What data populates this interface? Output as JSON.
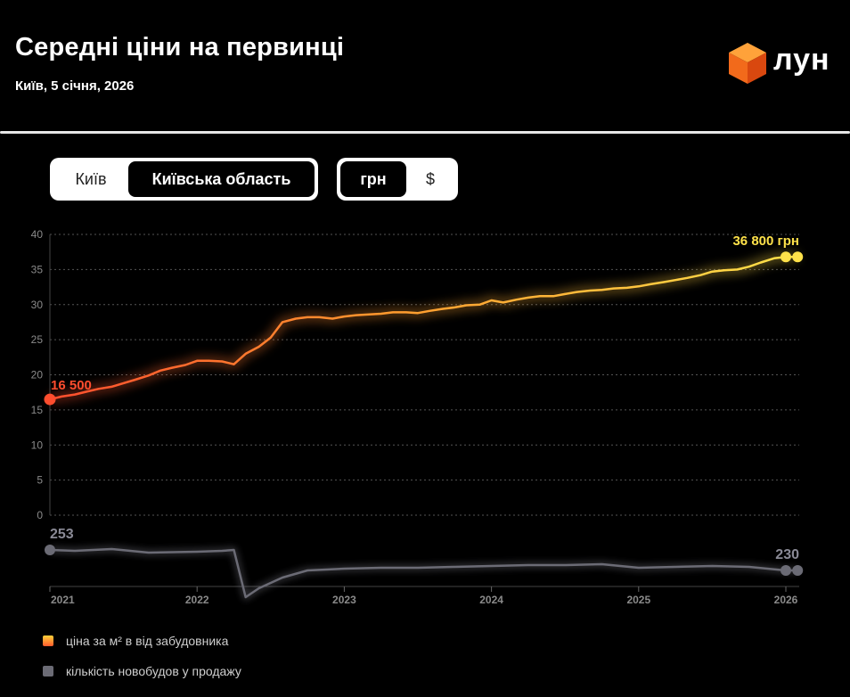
{
  "header": {
    "title": "Середні ціни на первинці",
    "subtitle": "Київ, 5 січня, 2026",
    "logo_text": "лун"
  },
  "controls": {
    "region": {
      "options": [
        "Київ",
        "Київська область"
      ],
      "selected": "Київська область"
    },
    "currency": {
      "options": [
        "грн",
        "$"
      ],
      "selected": "грн"
    }
  },
  "colors": {
    "price_start": "#ff4d2e",
    "price_end": "#ffe24a",
    "count": "#6b6b75",
    "grid": "#555555",
    "axis_text": "#8a8a8a"
  },
  "chart_data": [
    {
      "type": "line",
      "title": "ціна за м² в від забудовника",
      "ylabel": "",
      "ylim": [
        0,
        40
      ],
      "yticks": [
        "0",
        "5",
        "10",
        "15",
        "20",
        "25",
        "30",
        "35",
        "40"
      ],
      "x": [
        2021.0,
        2021.08,
        2021.17,
        2021.25,
        2021.33,
        2021.42,
        2021.5,
        2021.58,
        2021.67,
        2021.75,
        2021.83,
        2021.92,
        2022.0,
        2022.08,
        2022.17,
        2022.25,
        2022.33,
        2022.42,
        2022.5,
        2022.58,
        2022.67,
        2022.75,
        2022.83,
        2022.92,
        2023.0,
        2023.08,
        2023.17,
        2023.25,
        2023.33,
        2023.42,
        2023.5,
        2023.58,
        2023.67,
        2023.75,
        2023.83,
        2023.92,
        2024.0,
        2024.08,
        2024.17,
        2024.25,
        2024.33,
        2024.42,
        2024.5,
        2024.58,
        2024.67,
        2024.75,
        2024.83,
        2024.92,
        2025.0,
        2025.08,
        2025.17,
        2025.25,
        2025.33,
        2025.42,
        2025.5,
        2025.58,
        2025.67,
        2025.75,
        2025.83,
        2025.92,
        2026.0,
        2026.08
      ],
      "values": [
        16.5,
        16.9,
        17.2,
        17.6,
        18.0,
        18.3,
        18.8,
        19.3,
        19.9,
        20.6,
        21.0,
        21.4,
        22.0,
        22.0,
        21.9,
        21.5,
        23.0,
        24.0,
        25.3,
        27.5,
        28.0,
        28.2,
        28.2,
        28.0,
        28.3,
        28.5,
        28.6,
        28.7,
        28.9,
        28.9,
        28.8,
        29.1,
        29.4,
        29.6,
        29.9,
        30.0,
        30.6,
        30.3,
        30.7,
        31.0,
        31.2,
        31.2,
        31.5,
        31.8,
        32.0,
        32.1,
        32.3,
        32.4,
        32.6,
        32.9,
        33.2,
        33.5,
        33.8,
        34.2,
        34.7,
        34.9,
        35.0,
        35.4,
        36.0,
        36.6,
        36.8,
        36.8
      ],
      "start_label": "16 500",
      "end_label": "36 800 грн"
    },
    {
      "type": "line",
      "title": "кількість новобудов у продажу",
      "x": [
        2021.0,
        2021.17,
        2021.42,
        2021.67,
        2022.0,
        2022.17,
        2022.25,
        2022.33,
        2022.42,
        2022.58,
        2022.75,
        2023.0,
        2023.25,
        2023.5,
        2023.75,
        2024.0,
        2024.25,
        2024.5,
        2024.75,
        2025.0,
        2025.25,
        2025.5,
        2025.75,
        2026.0,
        2026.08
      ],
      "values": [
        253,
        252,
        254,
        250,
        251,
        252,
        253,
        200,
        210,
        222,
        230,
        232,
        233,
        233,
        234,
        235,
        236,
        236,
        237,
        233,
        234,
        235,
        234,
        230,
        230
      ],
      "ylim": [
        180,
        280
      ],
      "start_label": "253",
      "end_label": "230"
    }
  ],
  "x_axis": {
    "ticks": [
      "2021",
      "2022",
      "2023",
      "2024",
      "2025",
      "2026"
    ],
    "tick_values": [
      2021,
      2022,
      2023,
      2024,
      2025,
      2026
    ]
  },
  "legend": [
    {
      "label": "ціна за м² в від забудовника",
      "color": "#f5a623"
    },
    {
      "label": "кількість новобудов у продажу",
      "color": "#6b6b75"
    }
  ]
}
